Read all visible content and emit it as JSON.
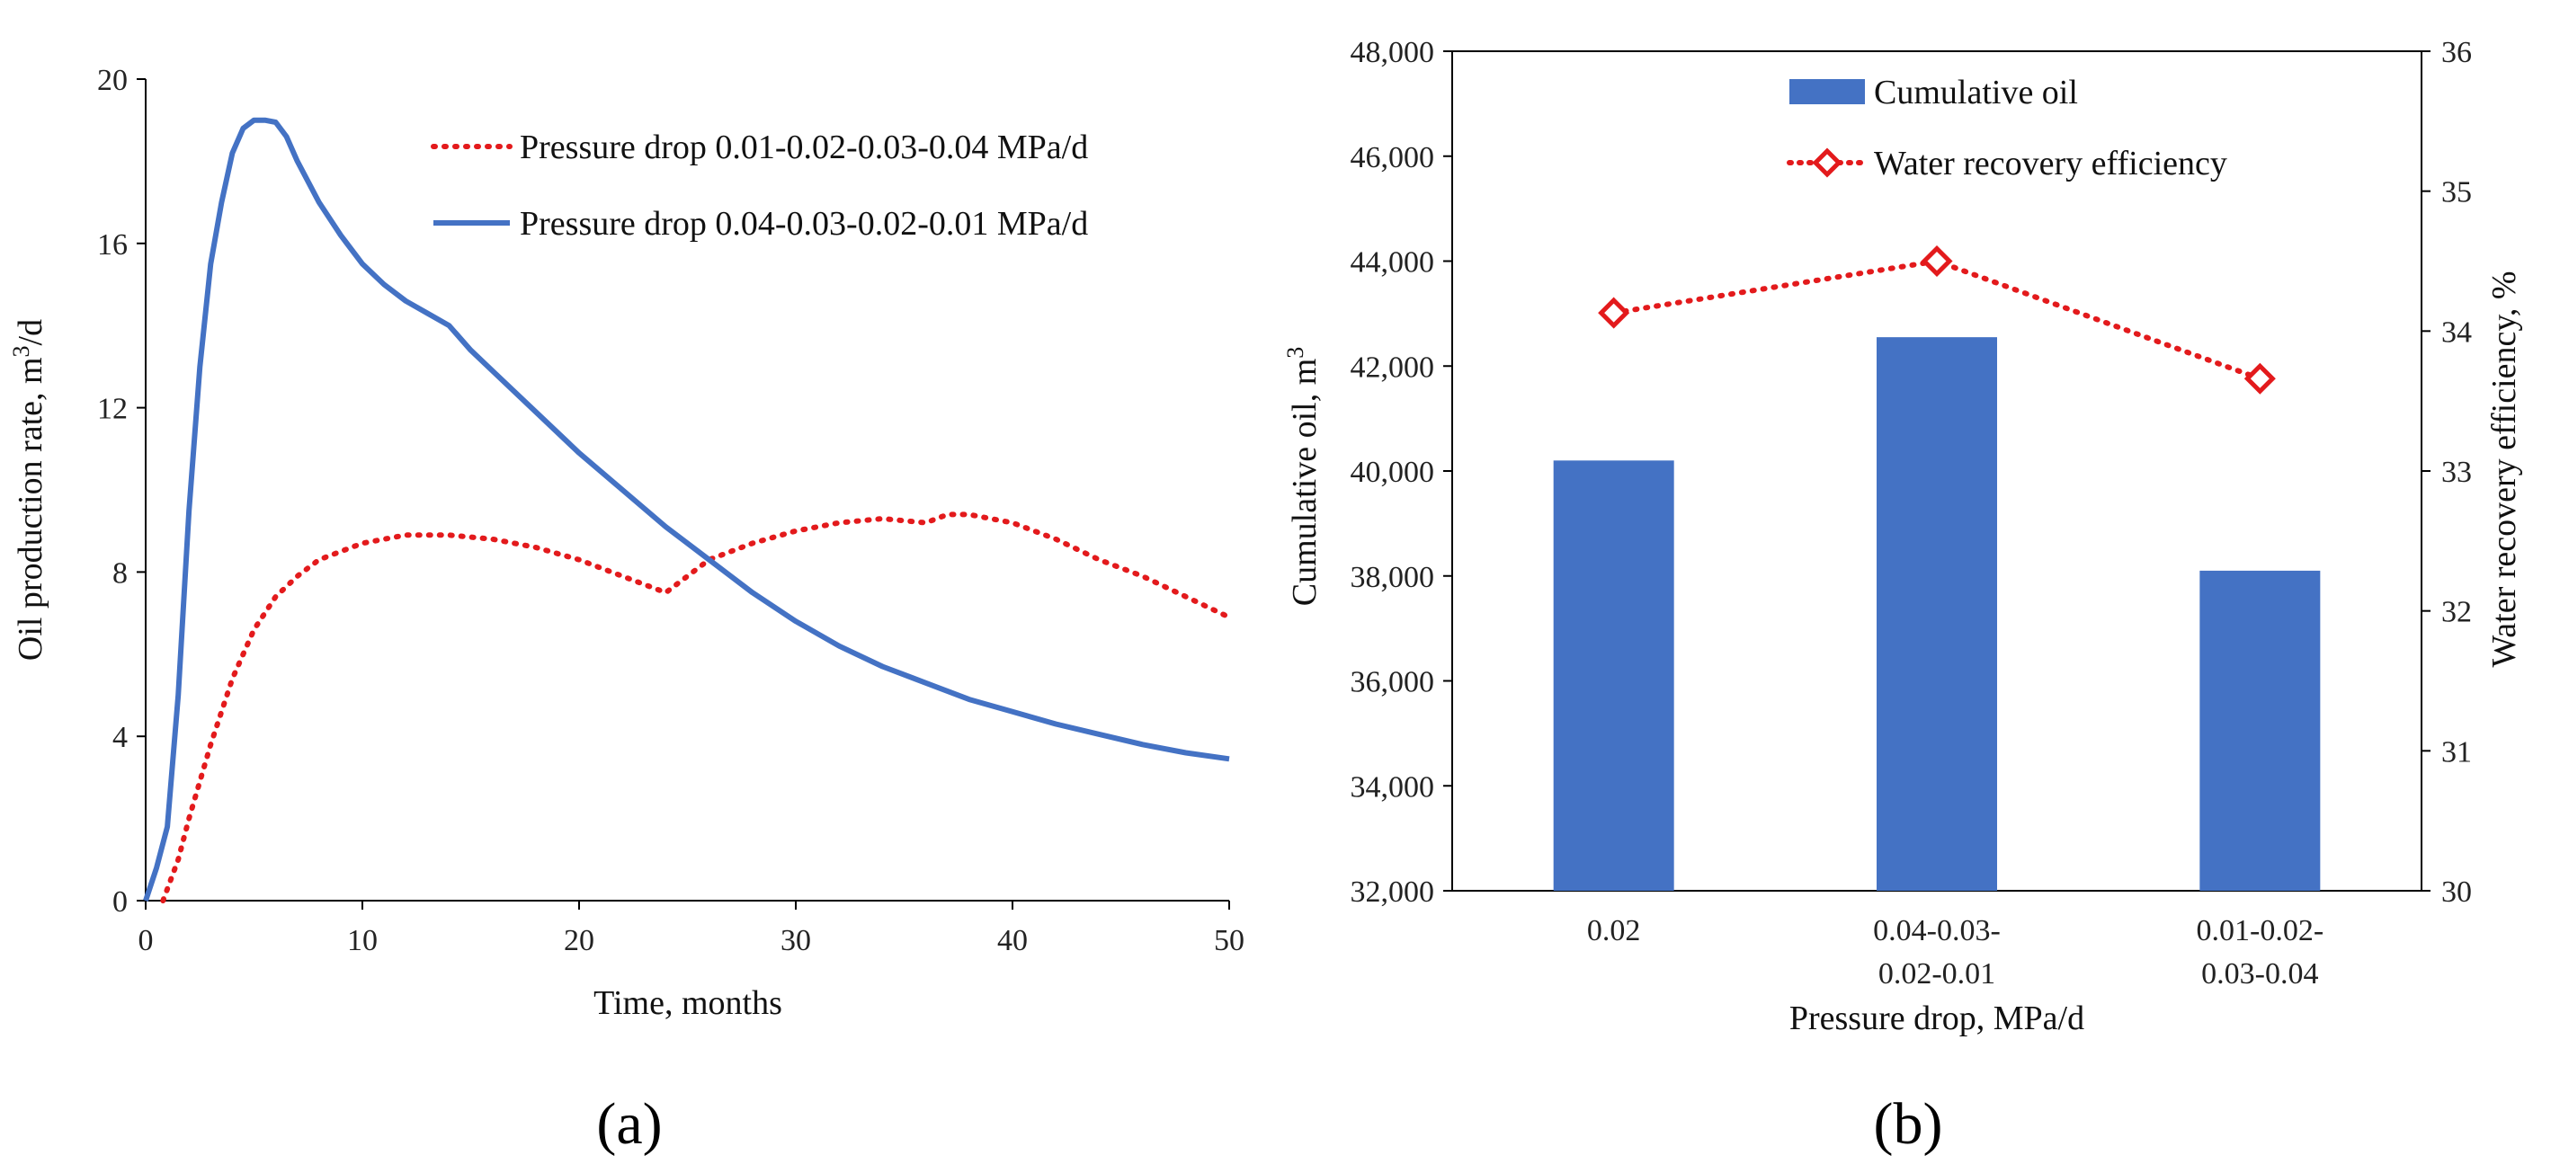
{
  "chart_data": [
    {
      "type": "line",
      "panel_label": "(a)",
      "title": "",
      "xlabel": "Time, months",
      "ylabel_main": "Oil production rate, m",
      "ylabel_sup": "3",
      "ylabel_tail": "/d",
      "xlim": [
        0,
        50
      ],
      "ylim": [
        0,
        20
      ],
      "xticks": [
        0,
        10,
        20,
        30,
        40,
        50
      ],
      "yticks": [
        0,
        4,
        8,
        12,
        16,
        20
      ],
      "grid": false,
      "legend_position": "top-right",
      "series": [
        {
          "name": "Pressure drop 0.01-0.02-0.03-0.04 MPa/d",
          "color": "#e31a1c",
          "style": "dotted",
          "x": [
            0.8,
            1.5,
            2,
            3,
            4,
            5,
            6,
            7,
            8,
            10,
            12,
            14,
            16,
            18,
            20,
            22,
            24,
            25,
            26,
            28,
            30,
            32,
            34,
            36,
            37,
            38,
            40,
            42,
            44,
            46,
            48,
            50
          ],
          "y": [
            0,
            1.0,
            2.0,
            3.8,
            5.4,
            6.6,
            7.4,
            7.9,
            8.3,
            8.7,
            8.9,
            8.9,
            8.8,
            8.6,
            8.3,
            7.9,
            7.5,
            7.9,
            8.3,
            8.7,
            9.0,
            9.2,
            9.3,
            9.2,
            9.4,
            9.4,
            9.2,
            8.8,
            8.3,
            7.9,
            7.4,
            6.9
          ]
        },
        {
          "name": "Pressure drop 0.04-0.03-0.02-0.01 MPa/d",
          "color": "#4472c4",
          "style": "solid",
          "x": [
            0,
            0.5,
            1,
            1.5,
            2,
            2.5,
            3,
            3.5,
            4,
            4.5,
            5,
            5.5,
            6,
            6.5,
            7,
            8,
            9,
            10,
            11,
            12,
            13,
            14,
            15,
            16,
            18,
            20,
            22,
            24,
            26,
            28,
            30,
            32,
            34,
            36,
            38,
            40,
            42,
            44,
            46,
            48,
            50
          ],
          "y": [
            0,
            0.8,
            1.8,
            5.0,
            9.5,
            13.0,
            15.5,
            17.0,
            18.2,
            18.8,
            19.0,
            19.0,
            18.95,
            18.6,
            18.0,
            17.0,
            16.2,
            15.5,
            15.0,
            14.6,
            14.3,
            14.0,
            13.4,
            12.9,
            11.9,
            10.9,
            10.0,
            9.1,
            8.3,
            7.5,
            6.8,
            6.2,
            5.7,
            5.3,
            4.9,
            4.6,
            4.3,
            4.05,
            3.8,
            3.6,
            3.45
          ]
        }
      ]
    },
    {
      "type": "bar",
      "panel_label": "(b)",
      "title": "",
      "xlabel": "Pressure drop, MPa/d",
      "ylabel_main": "Cumulative oil, m",
      "ylabel_sup": "3",
      "y2label": "Water recovery efficiency, %",
      "categories": [
        [
          "0.02"
        ],
        [
          "0.04-0.03-",
          "0.02-0.01"
        ],
        [
          "0.01-0.02-",
          "0.03-0.04"
        ]
      ],
      "ylim": [
        32000,
        48000
      ],
      "yticks": [
        32000,
        34000,
        36000,
        38000,
        40000,
        42000,
        44000,
        46000,
        48000
      ],
      "ytick_labels": [
        "32,000",
        "34,000",
        "36,000",
        "38,000",
        "40,000",
        "42,000",
        "44,000",
        "46,000",
        "48,000"
      ],
      "y2lim": [
        30,
        36
      ],
      "y2ticks": [
        30,
        31,
        32,
        33,
        34,
        35,
        36
      ],
      "y2tick_labels": [
        "30",
        "31",
        "32",
        "33",
        "34",
        "35",
        "36"
      ],
      "grid": false,
      "legend_position": "top-center",
      "series": [
        {
          "name": "Cumulative oil",
          "kind": "bar",
          "axis": "left",
          "color": "#4472c4",
          "values": [
            40200,
            42550,
            38100
          ]
        },
        {
          "name": "Water recovery efficiency",
          "kind": "line",
          "axis": "right",
          "color": "#e31a1c",
          "marker": "diamond",
          "values": [
            34.13,
            34.5,
            33.66
          ]
        }
      ]
    }
  ]
}
